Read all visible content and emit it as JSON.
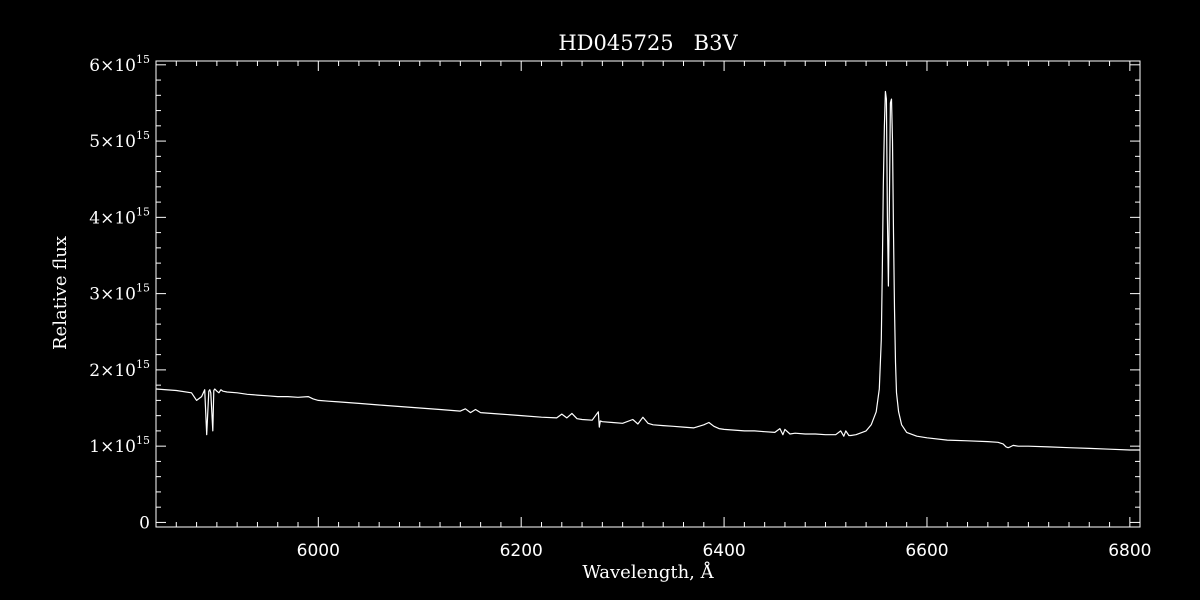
{
  "chart_data": {
    "type": "line",
    "title": "HD045725   B3V",
    "xlabel": "Wavelength, Å",
    "ylabel": "Relative flux",
    "xlim": [
      5840,
      6810
    ],
    "ylim": [
      -60000000000000.0,
      6050000000000000.0
    ],
    "x_ticks": [
      6000,
      6200,
      6400,
      6600,
      6800
    ],
    "x_tick_labels": [
      "6000",
      "6200",
      "6400",
      "6600",
      "6800"
    ],
    "y_ticks": [
      0,
      1000000000000000.0,
      2000000000000000.0,
      3000000000000000.0,
      4000000000000000.0,
      5000000000000000.0,
      6000000000000000.0
    ],
    "y_tick_labels": [
      {
        "mantissa": "0",
        "exp": ""
      },
      {
        "mantissa": "1×10",
        "exp": "15"
      },
      {
        "mantissa": "2×10",
        "exp": "15"
      },
      {
        "mantissa": "3×10",
        "exp": "15"
      },
      {
        "mantissa": "4×10",
        "exp": "15"
      },
      {
        "mantissa": "5×10",
        "exp": "15"
      },
      {
        "mantissa": "6×10",
        "exp": "15"
      }
    ],
    "grid": false,
    "colors": {
      "background": "#000000",
      "line": "#ffffff",
      "axes": "#ffffff"
    },
    "series": [
      {
        "x": [
          5840,
          5860,
          5875,
          5880,
          5885,
          5888,
          5890,
          5892,
          5893,
          5894,
          5896,
          5897,
          5898,
          5900,
          5902,
          5904,
          5906,
          5910,
          5920,
          5930,
          5940,
          5950,
          5960,
          5970,
          5980,
          5990,
          5995,
          6000,
          6010,
          6020,
          6040,
          6060,
          6080,
          6100,
          6120,
          6140,
          6145,
          6150,
          6155,
          6160,
          6180,
          6200,
          6220,
          6235,
          6240,
          6245,
          6250,
          6255,
          6260,
          6270,
          6276,
          6277,
          6278,
          6280,
          6290,
          6300,
          6310,
          6315,
          6320,
          6325,
          6330,
          6340,
          6350,
          6360,
          6370,
          6380,
          6385,
          6390,
          6395,
          6400,
          6410,
          6420,
          6430,
          6440,
          6450,
          6455,
          6458,
          6460,
          6465,
          6470,
          6480,
          6490,
          6500,
          6510,
          6515,
          6518,
          6520,
          6523,
          6525,
          6530,
          6540,
          6545,
          6550,
          6553,
          6555,
          6556,
          6557,
          6558,
          6559,
          6560,
          6561,
          6562,
          6563,
          6564,
          6565,
          6566,
          6567,
          6568,
          6569,
          6570,
          6572,
          6575,
          6580,
          6590,
          6600,
          6620,
          6640,
          6660,
          6670,
          6675,
          6678,
          6680,
          6682,
          6685,
          6690,
          6700,
          6720,
          6740,
          6760,
          6780,
          6800,
          6810
        ],
        "y": [
          1750000000000000.0,
          1730000000000000.0,
          1700000000000000.0,
          1600000000000000.0,
          1650000000000000.0,
          1740000000000000.0,
          1150000000000000.0,
          1720000000000000.0,
          1740000000000000.0,
          1700000000000000.0,
          1200000000000000.0,
          1730000000000000.0,
          1750000000000000.0,
          1720000000000000.0,
          1700000000000000.0,
          1740000000000000.0,
          1720000000000000.0,
          1710000000000000.0,
          1700000000000000.0,
          1680000000000000.0,
          1670000000000000.0,
          1660000000000000.0,
          1650000000000000.0,
          1650000000000000.0,
          1640000000000000.0,
          1650000000000000.0,
          1620000000000000.0,
          1600000000000000.0,
          1590000000000000.0,
          1580000000000000.0,
          1560000000000000.0,
          1540000000000000.0,
          1520000000000000.0,
          1500000000000000.0,
          1480000000000000.0,
          1460000000000000.0,
          1490000000000000.0,
          1440000000000000.0,
          1480000000000000.0,
          1440000000000000.0,
          1420000000000000.0,
          1400000000000000.0,
          1380000000000000.0,
          1370000000000000.0,
          1420000000000000.0,
          1370000000000000.0,
          1430000000000000.0,
          1360000000000000.0,
          1350000000000000.0,
          1340000000000000.0,
          1450000000000000.0,
          1250000000000000.0,
          1330000000000000.0,
          1320000000000000.0,
          1310000000000000.0,
          1300000000000000.0,
          1350000000000000.0,
          1290000000000000.0,
          1380000000000000.0,
          1300000000000000.0,
          1280000000000000.0,
          1270000000000000.0,
          1260000000000000.0,
          1250000000000000.0,
          1240000000000000.0,
          1280000000000000.0,
          1310000000000000.0,
          1260000000000000.0,
          1230000000000000.0,
          1220000000000000.0,
          1210000000000000.0,
          1200000000000000.0,
          1200000000000000.0,
          1190000000000000.0,
          1180000000000000.0,
          1230000000000000.0,
          1150000000000000.0,
          1220000000000000.0,
          1160000000000000.0,
          1170000000000000.0,
          1160000000000000.0,
          1160000000000000.0,
          1150000000000000.0,
          1150000000000000.0,
          1200000000000000.0,
          1130000000000000.0,
          1200000000000000.0,
          1140000000000000.0,
          1140000000000000.0,
          1150000000000000.0,
          1200000000000000.0,
          1280000000000000.0,
          1450000000000000.0,
          1750000000000000.0,
          2400000000000000.0,
          3300000000000000.0,
          4400000000000000.0,
          5200000000000000.0,
          5650000000000000.0,
          5550000000000000.0,
          4000000000000000.0,
          3100000000000000.0,
          4200000000000000.0,
          5500000000000000.0,
          5550000000000000.0,
          5000000000000000.0,
          3800000000000000.0,
          2800000000000000.0,
          2100000000000000.0,
          1700000000000000.0,
          1450000000000000.0,
          1280000000000000.0,
          1180000000000000.0,
          1130000000000000.0,
          1110000000000000.0,
          1080000000000000.0,
          1070000000000000.0,
          1060000000000000.0,
          1050000000000000.0,
          1030000000000000.0,
          990000000000000.0,
          980000000000000.0,
          990000000000000.0,
          1010000000000000.0,
          1000000000000000.0,
          1000000000000000.0,
          990000000000000.0,
          980000000000000.0,
          970000000000000.0,
          960000000000000.0,
          950000000000000.0,
          950000000000000.0
        ]
      }
    ]
  }
}
